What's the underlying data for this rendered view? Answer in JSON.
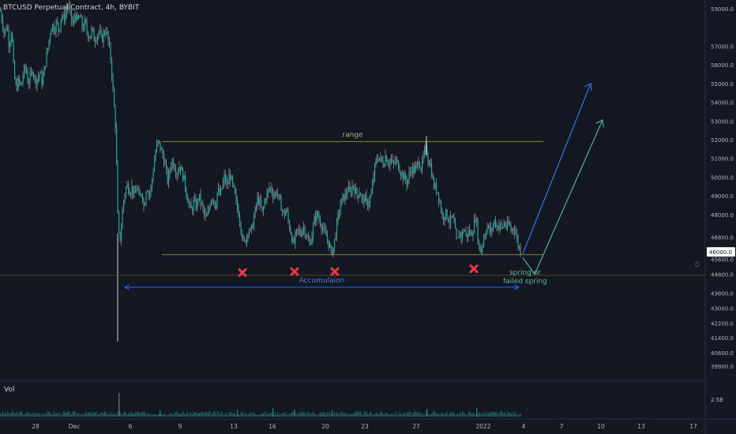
{
  "header": {
    "symbol_line": "BTCUSD Perpetual Contract, 4h, BYBIT"
  },
  "volume_pane": {
    "label": "Vol",
    "axis_label": "2.5B"
  },
  "hline_marker": "D",
  "chart_data": {
    "type": "candlestick",
    "y_axis": {
      "min": 39300,
      "max": 59300,
      "tick_labels": [
        "59000.0",
        "57000.0",
        "56000.0",
        "55000.0",
        "54000.0",
        "53000.0",
        "52000.0",
        "51000.0",
        "50000.0",
        "49000.0",
        "48000.0",
        "46800.0",
        "45600.0",
        "44800.0",
        "43800.0",
        "43000.0",
        "42200.0",
        "41400.0",
        "40600.0",
        "39900.0"
      ],
      "tick_values": [
        59000,
        57000,
        56000,
        55000,
        54000,
        53000,
        52000,
        51000,
        50000,
        49000,
        48000,
        46800,
        45600,
        44800,
        43800,
        43000,
        42200,
        41400,
        40600,
        39900
      ],
      "current_price_label": "46000.0",
      "current_price": 46000
    },
    "x_axis": {
      "tick_labels": [
        "28",
        "Dec",
        "6",
        "9",
        "13",
        "16",
        "20",
        "23",
        "27",
        "2022",
        "4",
        "7",
        "10",
        "13",
        "17"
      ]
    },
    "price_path": [
      [
        0,
        58900
      ],
      [
        2,
        58400
      ],
      [
        5,
        57600
      ],
      [
        8,
        58200
      ],
      [
        11,
        57000
      ],
      [
        14,
        58000
      ],
      [
        17,
        55500
      ],
      [
        20,
        54700
      ],
      [
        23,
        55200
      ],
      [
        26,
        54800
      ],
      [
        29,
        55600
      ],
      [
        32,
        55900
      ],
      [
        35,
        55000
      ],
      [
        38,
        55400
      ],
      [
        41,
        55800
      ],
      [
        44,
        55100
      ],
      [
        47,
        55300
      ],
      [
        50,
        55600
      ],
      [
        53,
        55000
      ],
      [
        56,
        55900
      ],
      [
        59,
        56600
      ],
      [
        62,
        57500
      ],
      [
        65,
        58200
      ],
      [
        68,
        57900
      ],
      [
        71,
        58300
      ],
      [
        74,
        57800
      ],
      [
        77,
        58700
      ],
      [
        80,
        58400
      ],
      [
        83,
        58900
      ],
      [
        86,
        59200
      ],
      [
        89,
        58600
      ],
      [
        92,
        58100
      ],
      [
        95,
        58800
      ],
      [
        98,
        58300
      ],
      [
        101,
        58600
      ],
      [
        104,
        57900
      ],
      [
        107,
        58300
      ],
      [
        110,
        57700
      ],
      [
        113,
        57500
      ],
      [
        116,
        57900
      ],
      [
        119,
        57300
      ],
      [
        122,
        57600
      ],
      [
        125,
        57800
      ],
      [
        128,
        57300
      ],
      [
        131,
        57700
      ],
      [
        134,
        57900
      ],
      [
        137,
        57100
      ],
      [
        140,
        56200
      ],
      [
        143,
        54300
      ],
      [
        146,
        52500
      ],
      [
        149,
        47000
      ],
      [
        152,
        46700
      ],
      [
        155,
        48500
      ],
      [
        158,
        49300
      ],
      [
        161,
        49600
      ],
      [
        164,
        49200
      ],
      [
        167,
        49500
      ],
      [
        170,
        48900
      ],
      [
        173,
        49600
      ],
      [
        176,
        48700
      ],
      [
        179,
        49300
      ],
      [
        182,
        48300
      ],
      [
        185,
        49600
      ],
      [
        188,
        49000
      ],
      [
        191,
        49500
      ],
      [
        194,
        50600
      ],
      [
        197,
        51500
      ],
      [
        200,
        51900
      ],
      [
        203,
        51500
      ],
      [
        206,
        51100
      ],
      [
        209,
        50500
      ],
      [
        212,
        49700
      ],
      [
        215,
        50600
      ],
      [
        218,
        50900
      ],
      [
        221,
        50500
      ],
      [
        224,
        50200
      ],
      [
        227,
        50700
      ],
      [
        230,
        50200
      ],
      [
        233,
        49800
      ],
      [
        236,
        49000
      ],
      [
        239,
        48500
      ],
      [
        242,
        48200
      ],
      [
        245,
        48700
      ],
      [
        248,
        48400
      ],
      [
        251,
        49000
      ],
      [
        254,
        48600
      ],
      [
        257,
        48200
      ],
      [
        260,
        47700
      ],
      [
        263,
        48100
      ],
      [
        266,
        48800
      ],
      [
        269,
        49000
      ],
      [
        272,
        48400
      ],
      [
        275,
        49300
      ],
      [
        278,
        49000
      ],
      [
        281,
        49500
      ],
      [
        284,
        50100
      ],
      [
        287,
        49400
      ],
      [
        290,
        50200
      ],
      [
        293,
        49700
      ],
      [
        296,
        49200
      ],
      [
        299,
        48500
      ],
      [
        302,
        48000
      ],
      [
        305,
        47200
      ],
      [
        308,
        46400
      ],
      [
        311,
        46700
      ],
      [
        314,
        47300
      ],
      [
        317,
        47000
      ],
      [
        320,
        47600
      ],
      [
        323,
        48300
      ],
      [
        326,
        48900
      ],
      [
        329,
        48500
      ],
      [
        332,
        48000
      ],
      [
        335,
        48900
      ],
      [
        338,
        49100
      ],
      [
        341,
        49500
      ],
      [
        344,
        49200
      ],
      [
        347,
        49000
      ],
      [
        350,
        49300
      ],
      [
        353,
        48700
      ],
      [
        356,
        48400
      ],
      [
        359,
        47900
      ],
      [
        362,
        48300
      ],
      [
        365,
        47500
      ],
      [
        368,
        47000
      ],
      [
        371,
        46300
      ],
      [
        374,
        46900
      ],
      [
        377,
        47200
      ],
      [
        380,
        46900
      ],
      [
        383,
        47400
      ],
      [
        386,
        47100
      ],
      [
        389,
        46600
      ],
      [
        392,
        46400
      ],
      [
        395,
        47100
      ],
      [
        398,
        47800
      ],
      [
        401,
        48000
      ],
      [
        404,
        47700
      ],
      [
        407,
        47400
      ],
      [
        410,
        47000
      ],
      [
        413,
        46800
      ],
      [
        416,
        46400
      ],
      [
        419,
        45900
      ],
      [
        422,
        46300
      ],
      [
        425,
        47200
      ],
      [
        428,
        48000
      ],
      [
        431,
        48600
      ],
      [
        434,
        48900
      ],
      [
        437,
        49000
      ],
      [
        440,
        49400
      ],
      [
        443,
        49100
      ],
      [
        446,
        49600
      ],
      [
        449,
        49300
      ],
      [
        452,
        49000
      ],
      [
        455,
        49300
      ],
      [
        458,
        48700
      ],
      [
        461,
        48900
      ],
      [
        464,
        48500
      ],
      [
        467,
        48800
      ],
      [
        470,
        49100
      ],
      [
        473,
        50300
      ],
      [
        476,
        50900
      ],
      [
        479,
        51100
      ],
      [
        482,
        50900
      ],
      [
        485,
        50700
      ],
      [
        488,
        51200
      ],
      [
        491,
        50700
      ],
      [
        494,
        51000
      ],
      [
        497,
        50600
      ],
      [
        500,
        50900
      ],
      [
        503,
        50700
      ],
      [
        506,
        50400
      ],
      [
        509,
        50100
      ],
      [
        512,
        49900
      ],
      [
        515,
        49700
      ],
      [
        518,
        50200
      ],
      [
        521,
        50500
      ],
      [
        524,
        50300
      ],
      [
        527,
        50600
      ],
      [
        530,
        50900
      ],
      [
        533,
        50400
      ],
      [
        536,
        51200
      ],
      [
        539,
        51500
      ],
      [
        542,
        50900
      ],
      [
        545,
        50600
      ],
      [
        548,
        49600
      ],
      [
        551,
        49400
      ],
      [
        554,
        49200
      ],
      [
        557,
        48500
      ],
      [
        560,
        47800
      ],
      [
        563,
        48100
      ],
      [
        566,
        47900
      ],
      [
        569,
        47600
      ],
      [
        572,
        47900
      ],
      [
        575,
        47300
      ],
      [
        578,
        46400
      ],
      [
        581,
        47100
      ],
      [
        584,
        46800
      ],
      [
        587,
        47300
      ],
      [
        590,
        46800
      ],
      [
        593,
        47100
      ],
      [
        596,
        46900
      ],
      [
        599,
        47300
      ],
      [
        602,
        48000
      ],
      [
        605,
        46500
      ],
      [
        608,
        46000
      ],
      [
        611,
        46600
      ],
      [
        614,
        47100
      ],
      [
        617,
        47400
      ],
      [
        620,
        47000
      ],
      [
        623,
        47300
      ],
      [
        626,
        47700
      ],
      [
        629,
        47300
      ],
      [
        632,
        47500
      ],
      [
        635,
        47200
      ],
      [
        638,
        47600
      ],
      [
        641,
        47300
      ],
      [
        644,
        47500
      ],
      [
        647,
        47100
      ],
      [
        650,
        47400
      ],
      [
        653,
        46900
      ],
      [
        656,
        46300
      ],
      [
        659,
        46000
      ]
    ],
    "volume_spikes": [
      [
        150,
        30
      ],
      [
        202,
        8
      ],
      [
        300,
        9
      ],
      [
        345,
        11
      ],
      [
        372,
        9
      ],
      [
        420,
        8
      ],
      [
        540,
        10
      ],
      [
        603,
        11
      ]
    ],
    "annotations": {
      "range_label": "range",
      "range_top": 51900,
      "range_bottom": 45850,
      "range_x_start": 205,
      "range_x_end": 688,
      "horizontal_line_price": 44750,
      "accumulation_label": "Accumulaion",
      "spring_label_line1": "spring or",
      "spring_label_line2": "failed spring",
      "x_marks": [
        [
          307,
          45400
        ],
        [
          373,
          45450
        ],
        [
          424,
          45450
        ],
        [
          600,
          45600
        ]
      ],
      "blue_arrow": [
        [
          662,
          45900
        ],
        [
          748,
          55000
        ]
      ],
      "green_path": [
        [
          662,
          45700
        ],
        [
          677,
          44800
        ],
        [
          763,
          53050
        ]
      ]
    },
    "colors": {
      "background": "#131722",
      "candle": "#26a69a",
      "wick": "#d1d4dc",
      "range_line": "#8a8a2a",
      "accum_blue": "#2962ff",
      "arrow_blue": "#3a6bd9",
      "arrow_green": "#4ea58b",
      "x_mark": "#f23645",
      "axis_text": "#b2b5be"
    }
  }
}
